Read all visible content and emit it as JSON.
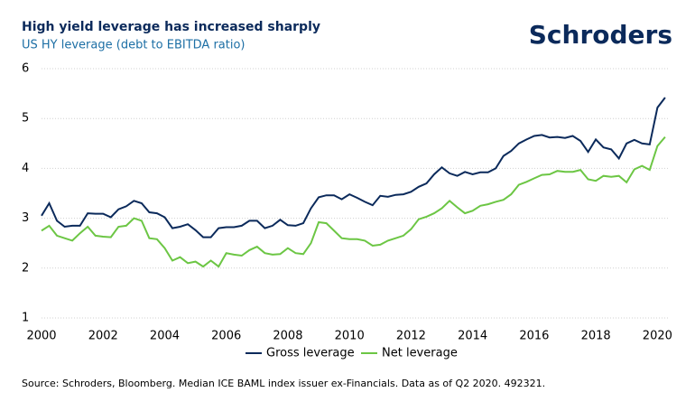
{
  "chart_data": {
    "type": "line",
    "title": "High yield leverage has increased sharply",
    "subtitle": "US HY leverage (debt to EBITDA ratio)",
    "brand": "Schroders",
    "source": "Source: Schroders, Bloomberg. Median ICE BAML index issuer ex-Financials. Data as of Q2 2020. 492321.",
    "x": [
      2000,
      2000.25,
      2000.5,
      2000.75,
      2001,
      2001.25,
      2001.5,
      2001.75,
      2002,
      2002.25,
      2002.5,
      2002.75,
      2003,
      2003.25,
      2003.5,
      2003.75,
      2004,
      2004.25,
      2004.5,
      2004.75,
      2005,
      2005.25,
      2005.5,
      2005.75,
      2006,
      2006.25,
      2006.5,
      2006.75,
      2007,
      2007.25,
      2007.5,
      2007.75,
      2008,
      2008.25,
      2008.5,
      2008.75,
      2009,
      2009.25,
      2009.5,
      2009.75,
      2010,
      2010.25,
      2010.5,
      2010.75,
      2011,
      2011.25,
      2011.5,
      2011.75,
      2012,
      2012.25,
      2012.5,
      2012.75,
      2013,
      2013.25,
      2013.5,
      2013.75,
      2014,
      2014.25,
      2014.5,
      2014.75,
      2015,
      2015.25,
      2015.5,
      2015.75,
      2016,
      2016.25,
      2016.5,
      2016.75,
      2017,
      2017.25,
      2017.5,
      2017.75,
      2018,
      2018.25,
      2018.5,
      2018.75,
      2019,
      2019.25,
      2019.5,
      2019.75,
      2020,
      2020.25
    ],
    "series": [
      {
        "name": "Gross leverage",
        "color": "#0b2a5b",
        "values": [
          3.05,
          3.3,
          2.95,
          2.83,
          2.85,
          2.85,
          3.1,
          3.09,
          3.09,
          3.02,
          3.18,
          3.24,
          3.35,
          3.3,
          3.12,
          3.1,
          3.02,
          2.8,
          2.83,
          2.88,
          2.76,
          2.62,
          2.62,
          2.8,
          2.82,
          2.82,
          2.85,
          2.95,
          2.95,
          2.8,
          2.85,
          2.97,
          2.86,
          2.85,
          2.9,
          3.2,
          3.42,
          3.46,
          3.46,
          3.38,
          3.48,
          3.41,
          3.33,
          3.26,
          3.45,
          3.43,
          3.47,
          3.48,
          3.53,
          3.63,
          3.7,
          3.88,
          4.02,
          3.9,
          3.85,
          3.93,
          3.88,
          3.92,
          3.92,
          4.0,
          4.25,
          4.35,
          4.5,
          4.58,
          4.65,
          4.67,
          4.62,
          4.63,
          4.61,
          4.65,
          4.55,
          4.33,
          4.58,
          4.42,
          4.38,
          4.2,
          4.5,
          4.57,
          4.5,
          4.48,
          5.22,
          5.42
        ]
      },
      {
        "name": "Net leverage",
        "color": "#6cc644",
        "values": [
          2.75,
          2.85,
          2.65,
          2.6,
          2.55,
          2.7,
          2.83,
          2.65,
          2.63,
          2.62,
          2.83,
          2.85,
          3.0,
          2.95,
          2.6,
          2.58,
          2.4,
          2.15,
          2.22,
          2.1,
          2.13,
          2.03,
          2.15,
          2.03,
          2.3,
          2.27,
          2.25,
          2.36,
          2.43,
          2.3,
          2.27,
          2.28,
          2.4,
          2.3,
          2.28,
          2.5,
          2.92,
          2.9,
          2.75,
          2.6,
          2.58,
          2.58,
          2.55,
          2.45,
          2.47,
          2.55,
          2.6,
          2.65,
          2.78,
          2.98,
          3.03,
          3.1,
          3.2,
          3.35,
          3.22,
          3.1,
          3.15,
          3.25,
          3.28,
          3.33,
          3.37,
          3.48,
          3.67,
          3.73,
          3.8,
          3.87,
          3.88,
          3.95,
          3.93,
          3.93,
          3.97,
          3.78,
          3.75,
          3.85,
          3.83,
          3.85,
          3.72,
          3.98,
          4.05,
          3.97,
          4.45,
          4.63
        ]
      }
    ],
    "xlim": [
      2000,
      2020.4
    ],
    "xticks": [
      2000,
      2002,
      2004,
      2006,
      2008,
      2010,
      2012,
      2014,
      2016,
      2018,
      2020
    ],
    "ylim": [
      1,
      6
    ],
    "yticks": [
      1,
      2,
      3,
      4,
      5,
      6
    ],
    "grid": true
  }
}
